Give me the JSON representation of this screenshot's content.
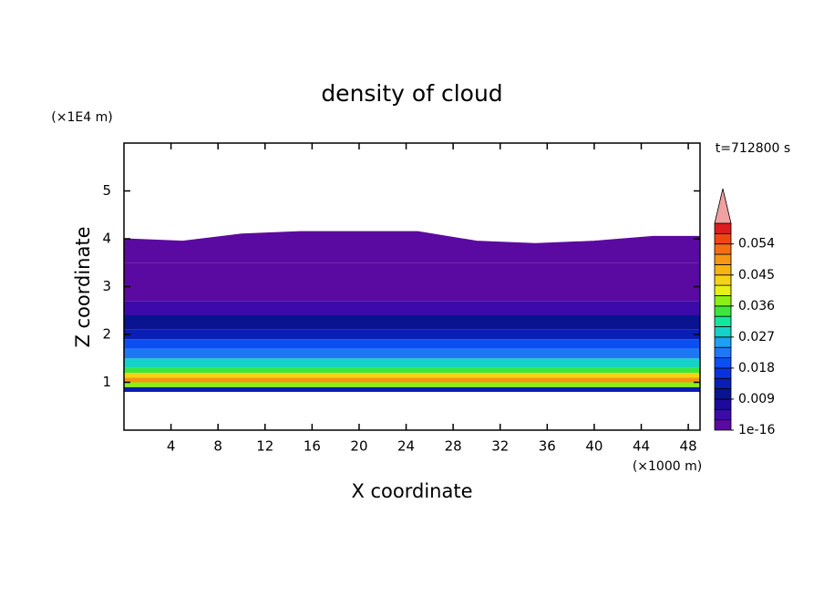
{
  "chart_data": {
    "type": "contour",
    "title": "density of cloud",
    "x_label": "X coordinate",
    "y_label": "Z coordinate",
    "x_unit_label": "(×1000 m)",
    "y_unit_label": "(×1E4 m)",
    "time_label": "t=712800 s",
    "xlim": [
      0,
      49
    ],
    "xticks": [
      4,
      8,
      12,
      16,
      20,
      24,
      28,
      32,
      36,
      40,
      44,
      48
    ],
    "ylim": [
      0,
      6
    ],
    "yticks": [
      1,
      2,
      3,
      4,
      5
    ],
    "profile": {
      "z": [
        0.8,
        0.9,
        1.0,
        1.1,
        1.2,
        1.3,
        1.5,
        1.7,
        1.9,
        2.1,
        2.4,
        2.7,
        3.0,
        3.5
      ],
      "values": [
        0.012,
        0.038,
        0.05,
        0.044,
        0.034,
        0.027,
        0.022,
        0.018,
        0.013,
        0.009,
        0.005,
        0.002,
        0.001,
        0.0005
      ]
    },
    "top": {
      "x": [
        0,
        5,
        10,
        15,
        20,
        25,
        30,
        35,
        40,
        45,
        49
      ],
      "z": [
        4.0,
        3.95,
        4.1,
        4.15,
        4.15,
        4.15,
        3.95,
        3.9,
        3.95,
        4.05,
        4.05
      ]
    },
    "colorbar": {
      "lim": [
        0,
        0.06
      ],
      "colors": [
        "#5a0aa0",
        "#3c0aa8",
        "#1e0a9a",
        "#0a1490",
        "#0a1eb4",
        "#0a32dc",
        "#0a50f0",
        "#1e78f5",
        "#1ea0f5",
        "#14d2c8",
        "#14e69b",
        "#3ce63c",
        "#8cf014",
        "#e6f014",
        "#f5d214",
        "#f5b414",
        "#f59614",
        "#f56e14",
        "#f04614",
        "#dc1e1e"
      ],
      "over_color": "#f0a0a0",
      "ticks": [
        {
          "value": 1e-16,
          "label": "1e-16"
        },
        0.009,
        0.018,
        0.027,
        0.036,
        0.045,
        0.054
      ]
    }
  }
}
